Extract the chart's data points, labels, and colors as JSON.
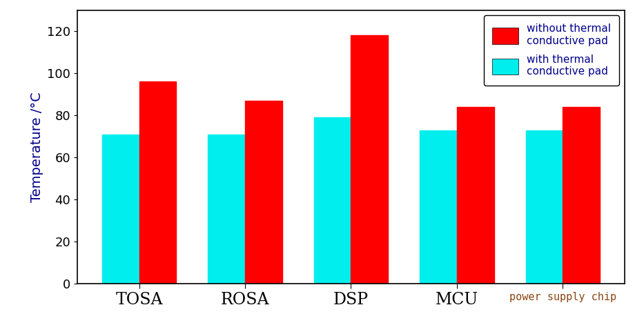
{
  "categories": [
    "TOSA",
    "ROSA",
    "DSP",
    "MCU",
    "power supply chip"
  ],
  "without_pad": [
    96,
    87,
    118,
    84,
    84
  ],
  "with_pad": [
    71,
    71,
    79,
    73,
    73
  ],
  "color_without": "#ff0000",
  "color_with": "#00eeee",
  "ylabel": "Temperature /°C",
  "ylim": [
    0,
    130
  ],
  "yticks": [
    0,
    20,
    40,
    60,
    80,
    100,
    120
  ],
  "legend_without_line1": "without thermal",
  "legend_without_line2": "conductive pad",
  "legend_with_line1": "with thermal",
  "legend_with_line2": "conductive pad",
  "bar_width": 0.35,
  "background_color": "#ffffff",
  "label_color": "#00008B",
  "tick_color": "#000000",
  "axis_fontsize": 14,
  "tick_fontsize": 13,
  "legend_fontsize": 11,
  "xtick_fontsize_main": 17,
  "xtick_fontsize_last": 11
}
